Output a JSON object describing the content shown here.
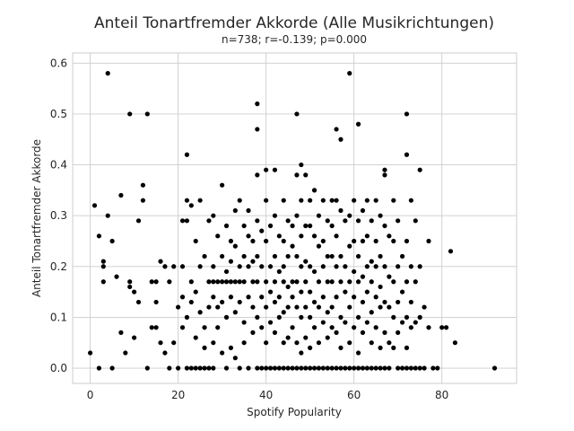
{
  "chart_data": {
    "type": "scatter",
    "title": "Anteil Tonartfremder Akkorde (Alle Musikrichtungen)",
    "subtitle": "n=738; r=-0.139; p=0.000",
    "xlabel": "Spotify Popularity",
    "ylabel": "Anteil Tonartfremder Akkorde",
    "xlim": [
      -4,
      97
    ],
    "ylim": [
      -0.03,
      0.62
    ],
    "xticks": [
      0,
      20,
      40,
      60,
      80
    ],
    "yticks": [
      0.0,
      0.1,
      0.2,
      0.3,
      0.4,
      0.5,
      0.6
    ],
    "grid": true,
    "marker_color": "#000000",
    "points": [
      [
        0,
        0.03
      ],
      [
        1,
        0.32
      ],
      [
        2,
        0.0
      ],
      [
        2,
        0.26
      ],
      [
        3,
        0.17
      ],
      [
        3,
        0.2
      ],
      [
        3,
        0.21
      ],
      [
        4,
        0.58
      ],
      [
        4,
        0.3
      ],
      [
        5,
        0.0
      ],
      [
        5,
        0.25
      ],
      [
        6,
        0.18
      ],
      [
        7,
        0.07
      ],
      [
        7,
        0.34
      ],
      [
        8,
        0.03
      ],
      [
        9,
        0.5
      ],
      [
        9,
        0.17
      ],
      [
        9,
        0.16
      ],
      [
        10,
        0.06
      ],
      [
        10,
        0.15
      ],
      [
        11,
        0.29
      ],
      [
        11,
        0.13
      ],
      [
        12,
        0.36
      ],
      [
        12,
        0.33
      ],
      [
        13,
        0.5
      ],
      [
        13,
        0.0
      ],
      [
        14,
        0.08
      ],
      [
        14,
        0.17
      ],
      [
        15,
        0.08
      ],
      [
        15,
        0.17
      ],
      [
        15,
        0.13
      ],
      [
        16,
        0.21
      ],
      [
        16,
        0.05
      ],
      [
        17,
        0.03
      ],
      [
        17,
        0.2
      ],
      [
        18,
        0.0
      ],
      [
        18,
        0.17
      ],
      [
        19,
        0.05
      ],
      [
        19,
        0.2
      ],
      [
        20,
        0.12
      ],
      [
        20,
        0.0
      ],
      [
        21,
        0.29
      ],
      [
        21,
        0.2
      ],
      [
        21,
        0.14
      ],
      [
        21,
        0.08
      ],
      [
        22,
        0.42
      ],
      [
        22,
        0.33
      ],
      [
        22,
        0.29
      ],
      [
        22,
        0.1
      ],
      [
        22,
        0.0
      ],
      [
        23,
        0.32
      ],
      [
        23,
        0.17
      ],
      [
        23,
        0.13
      ],
      [
        23,
        0.0
      ],
      [
        24,
        0.25
      ],
      [
        24,
        0.15
      ],
      [
        24,
        0.06
      ],
      [
        24,
        0.0
      ],
      [
        25,
        0.33
      ],
      [
        25,
        0.2
      ],
      [
        25,
        0.11
      ],
      [
        25,
        0.0
      ],
      [
        26,
        0.22
      ],
      [
        26,
        0.08
      ],
      [
        26,
        0.04
      ],
      [
        26,
        0.0
      ],
      [
        27,
        0.29
      ],
      [
        27,
        0.17
      ],
      [
        27,
        0.12
      ],
      [
        27,
        0.0
      ],
      [
        28,
        0.3
      ],
      [
        28,
        0.2
      ],
      [
        28,
        0.17
      ],
      [
        28,
        0.14
      ],
      [
        28,
        0.05
      ],
      [
        28,
        0.0
      ],
      [
        29,
        0.26
      ],
      [
        29,
        0.17
      ],
      [
        29,
        0.12
      ],
      [
        29,
        0.08
      ],
      [
        30,
        0.36
      ],
      [
        30,
        0.22
      ],
      [
        30,
        0.17
      ],
      [
        30,
        0.13
      ],
      [
        30,
        0.03
      ],
      [
        31,
        0.28
      ],
      [
        31,
        0.19
      ],
      [
        31,
        0.17
      ],
      [
        31,
        0.1
      ],
      [
        31,
        0.0
      ],
      [
        32,
        0.25
      ],
      [
        32,
        0.21
      ],
      [
        32,
        0.17
      ],
      [
        32,
        0.14
      ],
      [
        32,
        0.04
      ],
      [
        33,
        0.31
      ],
      [
        33,
        0.24
      ],
      [
        33,
        0.17
      ],
      [
        33,
        0.11
      ],
      [
        33,
        0.02
      ],
      [
        34,
        0.33
      ],
      [
        34,
        0.2
      ],
      [
        34,
        0.17
      ],
      [
        34,
        0.13
      ],
      [
        34,
        0.0
      ],
      [
        35,
        0.28
      ],
      [
        35,
        0.22
      ],
      [
        35,
        0.17
      ],
      [
        35,
        0.09
      ],
      [
        35,
        0.05
      ],
      [
        36,
        0.31
      ],
      [
        36,
        0.26
      ],
      [
        36,
        0.2
      ],
      [
        36,
        0.14
      ],
      [
        36,
        0.0
      ],
      [
        37,
        0.25
      ],
      [
        37,
        0.21
      ],
      [
        37,
        0.17
      ],
      [
        37,
        0.12
      ],
      [
        37,
        0.07
      ],
      [
        38,
        0.52
      ],
      [
        38,
        0.47
      ],
      [
        38,
        0.38
      ],
      [
        38,
        0.29
      ],
      [
        38,
        0.22
      ],
      [
        38,
        0.17
      ],
      [
        38,
        0.1
      ],
      [
        38,
        0.0
      ],
      [
        39,
        0.27
      ],
      [
        39,
        0.2
      ],
      [
        39,
        0.14
      ],
      [
        39,
        0.08
      ],
      [
        39,
        0.0
      ],
      [
        40,
        0.39
      ],
      [
        40,
        0.33
      ],
      [
        40,
        0.25
      ],
      [
        40,
        0.17
      ],
      [
        40,
        0.12
      ],
      [
        40,
        0.05
      ],
      [
        40,
        0.0
      ],
      [
        41,
        0.28
      ],
      [
        41,
        0.2
      ],
      [
        41,
        0.15
      ],
      [
        41,
        0.09
      ],
      [
        41,
        0.0
      ],
      [
        42,
        0.39
      ],
      [
        42,
        0.3
      ],
      [
        42,
        0.22
      ],
      [
        42,
        0.17
      ],
      [
        42,
        0.13
      ],
      [
        42,
        0.07
      ],
      [
        42,
        0.0
      ],
      [
        43,
        0.26
      ],
      [
        43,
        0.19
      ],
      [
        43,
        0.14
      ],
      [
        43,
        0.1
      ],
      [
        43,
        0.0
      ],
      [
        44,
        0.33
      ],
      [
        44,
        0.25
      ],
      [
        44,
        0.2
      ],
      [
        44,
        0.17
      ],
      [
        44,
        0.11
      ],
      [
        44,
        0.05
      ],
      [
        44,
        0.0
      ],
      [
        45,
        0.29
      ],
      [
        45,
        0.22
      ],
      [
        45,
        0.16
      ],
      [
        45,
        0.12
      ],
      [
        45,
        0.06
      ],
      [
        45,
        0.0
      ],
      [
        46,
        0.28
      ],
      [
        46,
        0.24
      ],
      [
        46,
        0.17
      ],
      [
        46,
        0.14
      ],
      [
        46,
        0.08
      ],
      [
        46,
        0.0
      ],
      [
        47,
        0.5
      ],
      [
        47,
        0.38
      ],
      [
        47,
        0.3
      ],
      [
        47,
        0.22
      ],
      [
        47,
        0.17
      ],
      [
        47,
        0.12
      ],
      [
        47,
        0.05
      ],
      [
        47,
        0.0
      ],
      [
        48,
        0.4
      ],
      [
        48,
        0.33
      ],
      [
        48,
        0.26
      ],
      [
        48,
        0.2
      ],
      [
        48,
        0.15
      ],
      [
        48,
        0.1
      ],
      [
        48,
        0.03
      ],
      [
        48,
        0.0
      ],
      [
        49,
        0.38
      ],
      [
        49,
        0.28
      ],
      [
        49,
        0.21
      ],
      [
        49,
        0.17
      ],
      [
        49,
        0.12
      ],
      [
        49,
        0.06
      ],
      [
        49,
        0.0
      ],
      [
        50,
        0.33
      ],
      [
        50,
        0.28
      ],
      [
        50,
        0.2
      ],
      [
        50,
        0.15
      ],
      [
        50,
        0.1
      ],
      [
        50,
        0.04
      ],
      [
        50,
        0.0
      ],
      [
        51,
        0.35
      ],
      [
        51,
        0.26
      ],
      [
        51,
        0.19
      ],
      [
        51,
        0.13
      ],
      [
        51,
        0.08
      ],
      [
        51,
        0.0
      ],
      [
        52,
        0.3
      ],
      [
        52,
        0.24
      ],
      [
        52,
        0.17
      ],
      [
        52,
        0.12
      ],
      [
        52,
        0.05
      ],
      [
        52,
        0.0
      ],
      [
        53,
        0.33
      ],
      [
        53,
        0.25
      ],
      [
        53,
        0.2
      ],
      [
        53,
        0.14
      ],
      [
        53,
        0.09
      ],
      [
        53,
        0.0
      ],
      [
        54,
        0.29
      ],
      [
        54,
        0.22
      ],
      [
        54,
        0.17
      ],
      [
        54,
        0.11
      ],
      [
        54,
        0.06
      ],
      [
        54,
        0.0
      ],
      [
        55,
        0.33
      ],
      [
        55,
        0.28
      ],
      [
        55,
        0.22
      ],
      [
        55,
        0.17
      ],
      [
        55,
        0.12
      ],
      [
        55,
        0.08
      ],
      [
        55,
        0.0
      ],
      [
        56,
        0.47
      ],
      [
        56,
        0.33
      ],
      [
        56,
        0.26
      ],
      [
        56,
        0.2
      ],
      [
        56,
        0.14
      ],
      [
        56,
        0.07
      ],
      [
        56,
        0.0
      ],
      [
        57,
        0.45
      ],
      [
        57,
        0.31
      ],
      [
        57,
        0.22
      ],
      [
        57,
        0.17
      ],
      [
        57,
        0.1
      ],
      [
        57,
        0.04
      ],
      [
        57,
        0.0
      ],
      [
        58,
        0.29
      ],
      [
        58,
        0.2
      ],
      [
        58,
        0.15
      ],
      [
        58,
        0.09
      ],
      [
        58,
        0.0
      ],
      [
        59,
        0.58
      ],
      [
        59,
        0.3
      ],
      [
        59,
        0.24
      ],
      [
        59,
        0.17
      ],
      [
        59,
        0.12
      ],
      [
        59,
        0.05
      ],
      [
        59,
        0.0
      ],
      [
        60,
        0.33
      ],
      [
        60,
        0.25
      ],
      [
        60,
        0.19
      ],
      [
        60,
        0.14
      ],
      [
        60,
        0.08
      ],
      [
        60,
        0.0
      ],
      [
        61,
        0.48
      ],
      [
        61,
        0.29
      ],
      [
        61,
        0.22
      ],
      [
        61,
        0.17
      ],
      [
        61,
        0.1
      ],
      [
        61,
        0.03
      ],
      [
        61,
        0.0
      ],
      [
        62,
        0.31
      ],
      [
        62,
        0.25
      ],
      [
        62,
        0.18
      ],
      [
        62,
        0.13
      ],
      [
        62,
        0.07
      ],
      [
        62,
        0.0
      ],
      [
        63,
        0.33
      ],
      [
        63,
        0.26
      ],
      [
        63,
        0.2
      ],
      [
        63,
        0.15
      ],
      [
        63,
        0.09
      ],
      [
        63,
        0.0
      ],
      [
        64,
        0.29
      ],
      [
        64,
        0.21
      ],
      [
        64,
        0.17
      ],
      [
        64,
        0.11
      ],
      [
        64,
        0.05
      ],
      [
        64,
        0.0
      ],
      [
        65,
        0.33
      ],
      [
        65,
        0.25
      ],
      [
        65,
        0.2
      ],
      [
        65,
        0.14
      ],
      [
        65,
        0.08
      ],
      [
        65,
        0.0
      ],
      [
        66,
        0.3
      ],
      [
        66,
        0.22
      ],
      [
        66,
        0.16
      ],
      [
        66,
        0.12
      ],
      [
        66,
        0.04
      ],
      [
        66,
        0.0
      ],
      [
        67,
        0.39
      ],
      [
        67,
        0.38
      ],
      [
        67,
        0.28
      ],
      [
        67,
        0.2
      ],
      [
        67,
        0.13
      ],
      [
        67,
        0.07
      ],
      [
        67,
        0.0
      ],
      [
        68,
        0.26
      ],
      [
        68,
        0.18
      ],
      [
        68,
        0.12
      ],
      [
        68,
        0.05
      ],
      [
        68,
        0.0
      ],
      [
        69,
        0.33
      ],
      [
        69,
        0.25
      ],
      [
        69,
        0.17
      ],
      [
        69,
        0.1
      ],
      [
        69,
        0.04
      ],
      [
        70,
        0.29
      ],
      [
        70,
        0.2
      ],
      [
        70,
        0.13
      ],
      [
        70,
        0.07
      ],
      [
        70,
        0.0
      ],
      [
        71,
        0.22
      ],
      [
        71,
        0.15
      ],
      [
        71,
        0.09
      ],
      [
        71,
        0.0
      ],
      [
        72,
        0.5
      ],
      [
        72,
        0.42
      ],
      [
        72,
        0.25
      ],
      [
        72,
        0.17
      ],
      [
        72,
        0.1
      ],
      [
        72,
        0.04
      ],
      [
        72,
        0.0
      ],
      [
        73,
        0.33
      ],
      [
        73,
        0.2
      ],
      [
        73,
        0.13
      ],
      [
        73,
        0.08
      ],
      [
        73,
        0.0
      ],
      [
        74,
        0.29
      ],
      [
        74,
        0.17
      ],
      [
        74,
        0.09
      ],
      [
        74,
        0.0
      ],
      [
        75,
        0.39
      ],
      [
        75,
        0.2
      ],
      [
        75,
        0.1
      ],
      [
        75,
        0.0
      ],
      [
        76,
        0.12
      ],
      [
        76,
        0.0
      ],
      [
        77,
        0.25
      ],
      [
        77,
        0.08
      ],
      [
        78,
        0.0
      ],
      [
        79,
        0.0
      ],
      [
        80,
        0.08
      ],
      [
        81,
        0.08
      ],
      [
        82,
        0.23
      ],
      [
        83,
        0.05
      ],
      [
        92,
        0.0
      ]
    ]
  }
}
